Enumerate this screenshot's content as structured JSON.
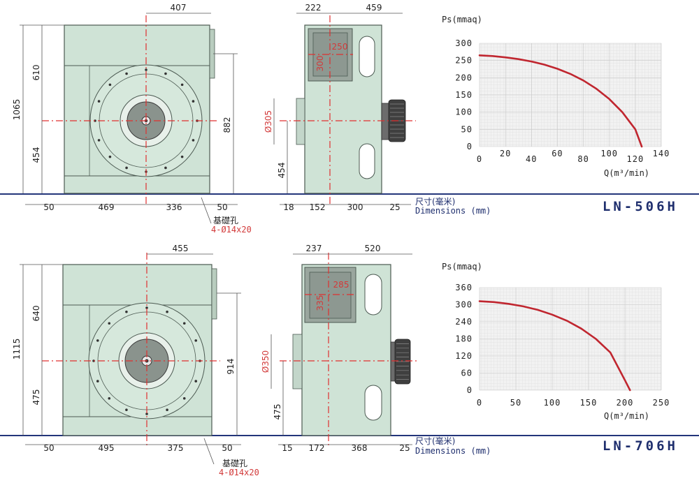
{
  "common": {
    "dimensions_cn": "尺寸(毫米)",
    "dimensions_en": "Dimensions (mm)",
    "foundation_cn": "基礎孔",
    "ps_label": "Ps(mmaq)",
    "q_label": "Q(m³/min)"
  },
  "colors": {
    "curve": "#c0262f",
    "body": "#cfe3d6",
    "centerline": "#e03030",
    "model_text": "#1f2f6e",
    "ground": "#23357a"
  },
  "units": [
    {
      "model": "LN-506H",
      "front": {
        "top_width": "407",
        "height_total": "1065",
        "height_upper": "610",
        "height_lower": "454",
        "height_right": "882",
        "b_left_margin": "50",
        "b_left": "469",
        "b_right": "336",
        "b_right_margin": "50",
        "holes": "4-Ø14x20"
      },
      "side": {
        "top_left": "222",
        "top_right": "459",
        "outlet_w": "250",
        "outlet_h": "300",
        "inlet_dia": "Ø305",
        "height_lower": "454",
        "b_1": "18",
        "b_2": "152",
        "b_3": "300",
        "b_4": "25"
      },
      "chart_data": {
        "type": "line",
        "title": "Ps(mmaq)",
        "xlabel": "Q(m³/min)",
        "ylabel": "Ps(mmaq)",
        "x_ticks": [
          "0",
          "20",
          "40",
          "60",
          "80",
          "100",
          "120",
          "140"
        ],
        "y_ticks": [
          "0",
          "50",
          "100",
          "150",
          "200",
          "250",
          "300"
        ],
        "xlim": [
          0,
          140
        ],
        "ylim": [
          0,
          300
        ],
        "series": [
          {
            "name": "LN-506H",
            "x": [
              0,
              10,
              20,
              30,
              40,
              50,
              60,
              70,
              80,
              90,
              100,
              110,
              120,
              125
            ],
            "y": [
              265,
              263,
              259,
              254,
              247,
              238,
              226,
              211,
              192,
              168,
              138,
              100,
              50,
              0
            ]
          }
        ]
      }
    },
    {
      "model": "LN-706H",
      "front": {
        "top_width": "455",
        "height_total": "1115",
        "height_upper": "640",
        "height_lower": "475",
        "height_right": "914",
        "b_left_margin": "50",
        "b_left": "495",
        "b_right": "375",
        "b_right_margin": "50",
        "holes": "4-Ø14x20"
      },
      "side": {
        "top_left": "237",
        "top_right": "520",
        "outlet_w": "285",
        "outlet_h": "335",
        "inlet_dia": "Ø350",
        "height_lower": "475",
        "b_1": "15",
        "b_2": "172",
        "b_3": "368",
        "b_4": "25"
      },
      "chart_data": {
        "type": "line",
        "title": "Ps(mmaq)",
        "xlabel": "Q(m³/min)",
        "ylabel": "Ps(mmaq)",
        "x_ticks": [
          "0",
          "50",
          "100",
          "150",
          "200",
          "250"
        ],
        "y_ticks": [
          "0",
          "60",
          "120",
          "180",
          "240",
          "300",
          "360"
        ],
        "xlim": [
          0,
          250
        ],
        "ylim": [
          0,
          360
        ],
        "series": [
          {
            "name": "LN-706H",
            "x": [
              0,
              20,
              40,
              60,
              80,
              100,
              120,
              140,
              160,
              180,
              200,
              207
            ],
            "y": [
              312,
              309,
              303,
              294,
              282,
              265,
              244,
              216,
              180,
              132,
              35,
              0
            ]
          }
        ]
      }
    }
  ]
}
